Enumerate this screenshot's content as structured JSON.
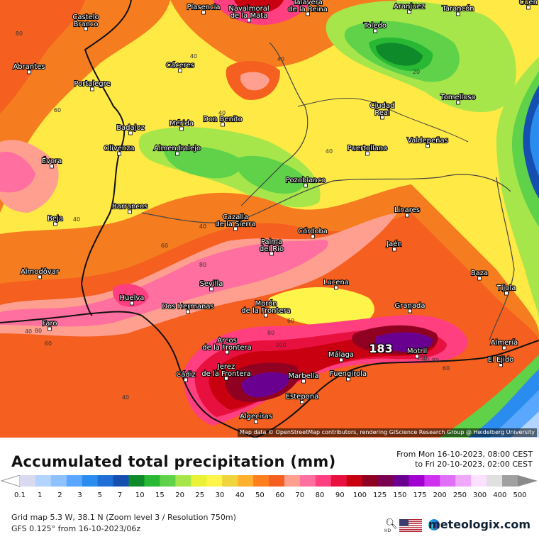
{
  "map": {
    "attribution": "Map data © OpenStreetMap contributors, rendering GIScience Research Group @ Heidelberg University",
    "cities": [
      {
        "name": "Plasencia"
      },
      {
        "name": "Navalmoral de la Mata"
      },
      {
        "name": "Talavera de la Reina"
      },
      {
        "name": "Aranjuez"
      },
      {
        "name": "Tarancón"
      },
      {
        "name": "Cuen"
      },
      {
        "name": "Castelo Branco"
      },
      {
        "name": "Toledo"
      },
      {
        "name": "Abrantes"
      },
      {
        "name": "Cáceres"
      },
      {
        "name": "Portalegre"
      },
      {
        "name": "Ciudad Real"
      },
      {
        "name": "Tomelloso"
      },
      {
        "name": "Badajoz"
      },
      {
        "name": "Mérida"
      },
      {
        "name": "Don Benito"
      },
      {
        "name": "Almendralejo"
      },
      {
        "name": "Olivenza"
      },
      {
        "name": "Puertollano"
      },
      {
        "name": "Valdepeñas"
      },
      {
        "name": "Évora"
      },
      {
        "name": "Pozoblanco"
      },
      {
        "name": "Barrancos"
      },
      {
        "name": "Beja"
      },
      {
        "name": "Linares"
      },
      {
        "name": "Cazalla de la Sierra"
      },
      {
        "name": "Córdoba"
      },
      {
        "name": "Jaén"
      },
      {
        "name": "Palma del Río"
      },
      {
        "name": "Almodôvar"
      },
      {
        "name": "Baza"
      },
      {
        "name": "Sevilla"
      },
      {
        "name": "Lucena"
      },
      {
        "name": "Tíjola"
      },
      {
        "name": "Huelva"
      },
      {
        "name": "Dos Hermanas"
      },
      {
        "name": "Morón de la Frontera"
      },
      {
        "name": "Granada"
      },
      {
        "name": "Faro"
      },
      {
        "name": "Almería"
      },
      {
        "name": "Motril"
      },
      {
        "name": "Arcos de la Frontera"
      },
      {
        "name": "Málaga"
      },
      {
        "name": "El Ejido"
      },
      {
        "name": "Cádiz"
      },
      {
        "name": "Jerez de la Frontera"
      },
      {
        "name": "Marbella"
      },
      {
        "name": "Fuengirola"
      },
      {
        "name": "Estepona"
      },
      {
        "name": "Algeciras"
      },
      {
        "name": "Tavira"
      },
      {
        "name": "Olhão"
      },
      {
        "name": "Mourão"
      }
    ],
    "contour_values": [
      "80",
      "40",
      "40",
      "40",
      "20",
      "40",
      "60",
      "40",
      "40",
      "40",
      "60",
      "80",
      "60",
      "60",
      "80",
      "80",
      "60",
      "100",
      "100",
      "60",
      "80",
      "40"
    ],
    "max_value": "183"
  },
  "legend": {
    "title": "Accumulated total precipitation (mm)",
    "from": "From Mon 16-10-2023, 08:00 CEST",
    "to": "to Fri 20-10-2023, 02:00 CEST",
    "ticks": [
      "0.1",
      "1",
      "2",
      "3",
      "5",
      "7",
      "10",
      "15",
      "20",
      "25",
      "30",
      "40",
      "50",
      "60",
      "70",
      "80",
      "90",
      "100",
      "125",
      "150",
      "175",
      "200",
      "250",
      "300",
      "400",
      "500"
    ],
    "colors": [
      "#d9d9ef",
      "#b3d4ff",
      "#8ec1ff",
      "#5aa7ff",
      "#2b8cf0",
      "#1f6fd6",
      "#1550b0",
      "#0f8a2a",
      "#28b834",
      "#5fd24a",
      "#a7e64b",
      "#e9f234",
      "#fff44a",
      "#f0d43c",
      "#ffb02e",
      "#ff7f1f",
      "#f55f1f",
      "#ff9f8f",
      "#ff6f9f",
      "#ff3f7f",
      "#e8103e",
      "#c8000f",
      "#900020",
      "#7a0050",
      "#6a0090",
      "#a000d0",
      "#d030f0",
      "#e070f8",
      "#f0a8fb",
      "#fbe0ff",
      "#e0e0e0",
      "#a0a0a0"
    ]
  },
  "meta": {
    "grid": "Grid map 5.3 W, 38.1 N (Zoom level 3 / Resolution 750m)",
    "model": "GFS 0.125° from  16-10-2023/06z",
    "brand": "meteologix.com",
    "hd": "HD"
  }
}
